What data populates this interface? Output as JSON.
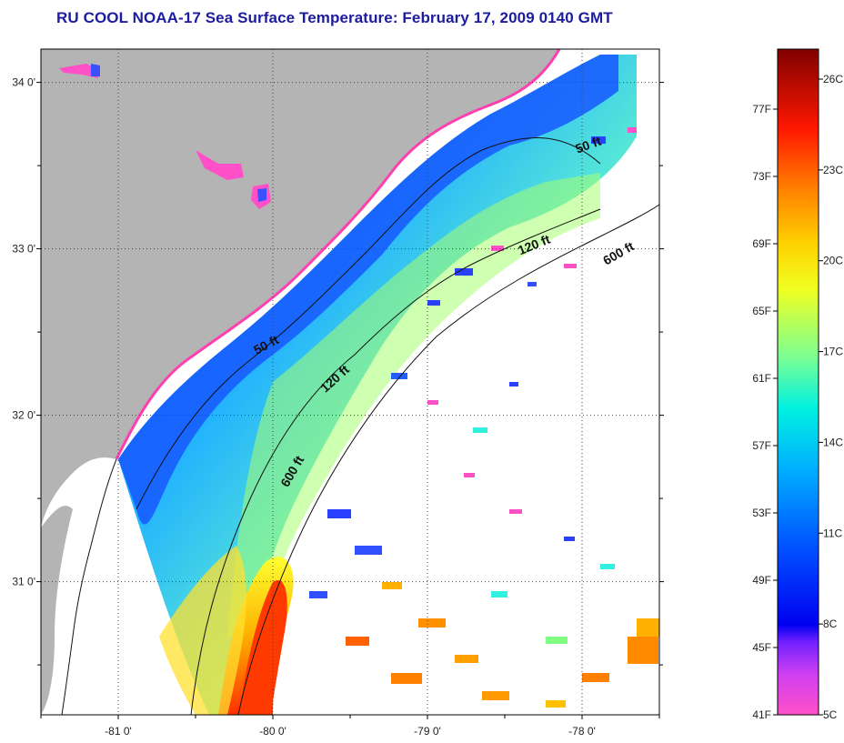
{
  "title": "RU COOL  NOAA-17  Sea Surface Temperature:  February 17, 2009 0140 GMT",
  "map": {
    "lat_ticks": [
      {
        "value": 34,
        "label": "34 0'"
      },
      {
        "value": 33,
        "label": "33 0'"
      },
      {
        "value": 32,
        "label": "32 0'"
      },
      {
        "value": 31,
        "label": "31 0'"
      }
    ],
    "lon_ticks": [
      {
        "value": -81,
        "label": "-81 0'"
      },
      {
        "value": -80,
        "label": "-80 0'"
      },
      {
        "value": -79,
        "label": "-79 0'"
      },
      {
        "value": -78,
        "label": "-78 0'"
      }
    ],
    "lat_range": [
      30.2,
      34.2
    ],
    "lon_range": [
      -81.5,
      -77.5
    ],
    "contour_labels": [
      {
        "text": "50 ft",
        "lat": 33.6,
        "lon": -77.95,
        "angle": -20
      },
      {
        "text": "120 ft",
        "lat": 33.0,
        "lon": -78.3,
        "angle": -22
      },
      {
        "text": "600 ft",
        "lat": 32.95,
        "lon": -77.75,
        "angle": -30
      },
      {
        "text": "50 ft",
        "lat": 32.4,
        "lon": -80.03,
        "angle": -28
      },
      {
        "text": "120 ft",
        "lat": 32.2,
        "lon": -79.58,
        "angle": -42
      },
      {
        "text": "600 ft",
        "lat": 31.65,
        "lon": -79.85,
        "angle": -60
      }
    ],
    "colors": {
      "land": "#b4b4b4",
      "ocean_no_data": "#ffffff",
      "coastline_highlight": "#ff3fb0",
      "grid": "#555555"
    }
  },
  "colorbar": {
    "fahrenheit_labels": [
      "77F",
      "73F",
      "69F",
      "65F",
      "61F",
      "57F",
      "53F",
      "49F",
      "45F",
      "41F"
    ],
    "celsius_labels": [
      "26C",
      "23C",
      "20C",
      "17C",
      "14C",
      "11C",
      "8C",
      "5C"
    ],
    "colors": [
      "#ff50c8",
      "#c040ff",
      "#0000ff",
      "#0080ff",
      "#00e0ff",
      "#80ff80",
      "#ffff00",
      "#ffa000",
      "#ff2000",
      "#800000"
    ]
  }
}
